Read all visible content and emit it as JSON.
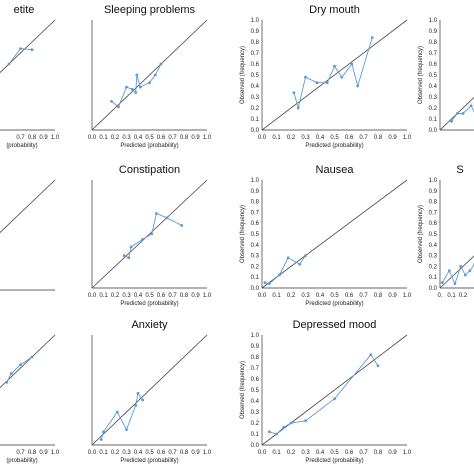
{
  "chart_data": [
    {
      "type": "line",
      "title": "etite",
      "xlabel": "(probability)",
      "ylabel": "",
      "xlim": [
        0,
        1
      ],
      "ylim": [
        0,
        1
      ],
      "x_ticks": [
        "0.7",
        "0.8",
        "0.9",
        "1.0"
      ],
      "y_ticks": [],
      "reference_line": "diagonal",
      "series": [
        {
          "x": [
            0.6,
            0.7,
            0.8
          ],
          "y": [
            0.6,
            0.74,
            0.73
          ]
        }
      ]
    },
    {
      "type": "line",
      "title": "Sleeping problems",
      "xlabel": "Predicted (probability)",
      "ylabel": "",
      "xlim": [
        0,
        1
      ],
      "ylim": [
        0,
        1
      ],
      "x_ticks": [
        "0.0",
        "0.1",
        "0.2",
        "0.3",
        "0.4",
        "0.5",
        "0.6",
        "0.7",
        "0.8",
        "0.9",
        "1.0"
      ],
      "y_ticks": [],
      "reference_line": "diagonal",
      "series": [
        {
          "x": [
            0.17,
            0.23,
            0.3,
            0.35,
            0.38,
            0.39,
            0.42,
            0.5,
            0.55,
            0.6
          ],
          "y": [
            0.26,
            0.21,
            0.39,
            0.37,
            0.34,
            0.5,
            0.39,
            0.43,
            0.5,
            0.6
          ]
        }
      ]
    },
    {
      "type": "line",
      "title": "Dry mouth",
      "xlabel": "Predicted (probability)",
      "ylabel": "Observed (frequency)",
      "xlim": [
        0,
        1
      ],
      "ylim": [
        0,
        1
      ],
      "x_ticks": [
        "0.0",
        "0.1",
        "0.2",
        "0.3",
        "0.4",
        "0.5",
        "0.6",
        "0.7",
        "0.8",
        "0.9",
        "1.0"
      ],
      "y_ticks": [
        "0.0",
        "0.1",
        "0.2",
        "0.3",
        "0.4",
        "0.5",
        "0.6",
        "0.7",
        "0.8",
        "0.9",
        "1.0"
      ],
      "reference_line": "diagonal",
      "series": [
        {
          "x": [
            0.22,
            0.25,
            0.3,
            0.38,
            0.45,
            0.5,
            0.55,
            0.62,
            0.66,
            0.76
          ],
          "y": [
            0.34,
            0.2,
            0.48,
            0.43,
            0.43,
            0.58,
            0.48,
            0.6,
            0.4,
            0.84
          ]
        }
      ]
    },
    {
      "type": "line",
      "title": "",
      "xlabel": "",
      "ylabel": "Observed (frequency)",
      "xlim": [
        0,
        1
      ],
      "ylim": [
        0,
        1
      ],
      "x_ticks": [],
      "y_ticks": [
        "0.0",
        "0.1",
        "0.2",
        "0.3",
        "0.4",
        "0.5",
        "0.6",
        "0.7",
        "0.8",
        "0.9",
        "1.0"
      ],
      "reference_line": "diagonal",
      "series": [
        {
          "x": [
            0.1,
            0.15,
            0.2,
            0.27,
            0.32
          ],
          "y": [
            0.08,
            0.15,
            0.15,
            0.22,
            0.12
          ]
        }
      ]
    },
    {
      "type": "line",
      "title": "",
      "xlabel": "",
      "ylabel": "",
      "xlim": [
        0,
        1
      ],
      "ylim": [
        0,
        1
      ],
      "x_ticks": [],
      "y_ticks": [],
      "reference_line": "diagonal",
      "series": []
    },
    {
      "type": "line",
      "title": "Constipation",
      "xlabel": "Predicted (probability)",
      "ylabel": "",
      "xlim": [
        0,
        1
      ],
      "ylim": [
        0,
        1
      ],
      "x_ticks": [
        "0.0",
        "0.1",
        "0.2",
        "0.3",
        "0.4",
        "0.5",
        "0.6",
        "0.7",
        "0.8",
        "0.9",
        "1.0"
      ],
      "y_ticks": [],
      "reference_line": "diagonal",
      "series": [
        {
          "x": [
            0.28,
            0.32,
            0.34,
            0.44,
            0.52,
            0.56,
            0.65,
            0.78
          ],
          "y": [
            0.3,
            0.28,
            0.38,
            0.45,
            0.5,
            0.69,
            0.65,
            0.58
          ]
        }
      ]
    },
    {
      "type": "line",
      "title": "Nausea",
      "xlabel": "Predicted (probability)",
      "ylabel": "Observed (frequency)",
      "xlim": [
        0,
        1
      ],
      "ylim": [
        0,
        1
      ],
      "x_ticks": [
        "0.0",
        "0.1",
        "0.2",
        "0.3",
        "0.4",
        "0.5",
        "0.6",
        "0.7",
        "0.8",
        "0.9",
        "1.0"
      ],
      "y_ticks": [
        "0.0",
        "0.1",
        "0.2",
        "0.3",
        "0.4",
        "0.5",
        "0.6",
        "0.7",
        "0.8",
        "0.9",
        "1.0"
      ],
      "reference_line": "diagonal",
      "series": [
        {
          "x": [
            0.02,
            0.05,
            0.12,
            0.18,
            0.26,
            0.3
          ],
          "y": [
            0.05,
            0.04,
            0.12,
            0.28,
            0.22,
            0.3
          ]
        }
      ]
    },
    {
      "type": "line",
      "title": "S",
      "xlabel": "",
      "ylabel": "Observed (frequency)",
      "xlim": [
        0,
        1
      ],
      "ylim": [
        0,
        1
      ],
      "x_ticks": [
        "0.",
        "0.1",
        "0.2"
      ],
      "y_ticks": [
        "0.0",
        "0.1",
        "0.2",
        "0.3",
        "0.4",
        "0.5",
        "0.6",
        "0.7",
        "0.8",
        "0.9",
        "1.0"
      ],
      "reference_line": "diagonal",
      "series": [
        {
          "x": [
            0.02,
            0.08,
            0.13,
            0.18,
            0.22,
            0.26,
            0.3
          ],
          "y": [
            0.05,
            0.16,
            0.04,
            0.2,
            0.12,
            0.16,
            0.22
          ]
        }
      ]
    },
    {
      "type": "line",
      "title": "",
      "xlabel": "(probability)",
      "ylabel": "",
      "xlim": [
        0,
        1
      ],
      "ylim": [
        0,
        1
      ],
      "x_ticks": [
        "0.7",
        "0.8",
        "0.9",
        "1.0"
      ],
      "y_ticks": [],
      "reference_line": "diagonal",
      "series": [
        {
          "x": [
            0.58,
            0.62,
            0.7,
            0.8
          ],
          "y": [
            0.57,
            0.65,
            0.73,
            0.8
          ]
        }
      ]
    },
    {
      "type": "line",
      "title": "Anxiety",
      "xlabel": "Predicted (probability)",
      "ylabel": "",
      "xlim": [
        0,
        1
      ],
      "ylim": [
        0,
        1
      ],
      "x_ticks": [
        "0.0",
        "0.1",
        "0.2",
        "0.3",
        "0.4",
        "0.5",
        "0.6",
        "0.7",
        "0.8",
        "0.9",
        "1.0"
      ],
      "y_ticks": [],
      "reference_line": "diagonal",
      "series": [
        {
          "x": [
            0.08,
            0.1,
            0.22,
            0.3,
            0.38,
            0.4,
            0.44
          ],
          "y": [
            0.05,
            0.12,
            0.3,
            0.14,
            0.36,
            0.47,
            0.41
          ]
        }
      ]
    },
    {
      "type": "line",
      "title": "Depressed mood",
      "xlabel": "Predicted (probability)",
      "ylabel": "Observed (frequency)",
      "xlim": [
        0,
        1
      ],
      "ylim": [
        0,
        1
      ],
      "x_ticks": [
        "0.0",
        "0.1",
        "0.2",
        "0.3",
        "0.4",
        "0.5",
        "0.6",
        "0.7",
        "0.8",
        "0.9",
        "1.0"
      ],
      "y_ticks": [
        "0.0",
        "0.1",
        "0.2",
        "0.3",
        "0.4",
        "0.5",
        "0.6",
        "0.7",
        "0.8",
        "0.9",
        "1.0"
      ],
      "reference_line": "diagonal",
      "series": [
        {
          "x": [
            0.05,
            0.1,
            0.15,
            0.2,
            0.3,
            0.5,
            0.75,
            0.8
          ],
          "y": [
            0.12,
            0.1,
            0.16,
            0.2,
            0.22,
            0.42,
            0.82,
            0.72
          ]
        }
      ]
    }
  ],
  "colors": {
    "series": "#5b9bd5",
    "reference": "#444444",
    "axis": "#333333"
  }
}
